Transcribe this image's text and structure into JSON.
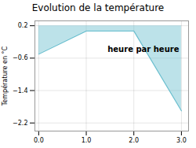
{
  "chart_data": {
    "type": "line",
    "title": "Evolution de la température",
    "ylabel": "Température en °C",
    "x": [
      0,
      1,
      2,
      3
    ],
    "values": [
      -0.5,
      0.07,
      0.07,
      -1.9
    ],
    "fill_to": 0.2,
    "color": "#6bbfcf",
    "xlim": [
      -0.08,
      3.15
    ],
    "xticks": [
      0,
      1,
      2,
      3
    ],
    "ylim": [
      -2.4,
      0.32
    ],
    "yticks": [
      0.2,
      -0.6,
      -1.4,
      -2.2
    ],
    "grid": true,
    "annotations": [
      {
        "text": "heure par heure",
        "x": 2.2,
        "y": -0.38
      }
    ]
  }
}
